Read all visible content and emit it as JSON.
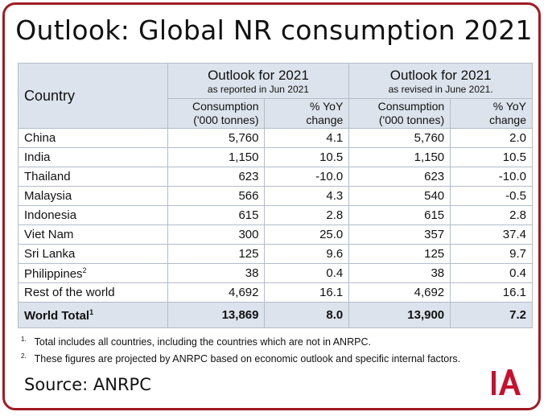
{
  "title": "Outlook: Global NR consumption 2021",
  "header": {
    "country_label": "Country",
    "group1_title": "Outlook for 2021",
    "group1_subtitle": "as reported in Jun 2021",
    "group2_title": "Outlook for 2021",
    "group2_subtitle": "as revised in June 2021.",
    "consumption_line1": "Consumption",
    "consumption_line2": "('000 tonnes)",
    "yoy_line1": "% YoY",
    "yoy_line2": "change"
  },
  "rows": [
    {
      "country": "China",
      "sup": "",
      "c1": "5,760",
      "y1": "4.1",
      "c2": "5,760",
      "y2": "2.0"
    },
    {
      "country": "India",
      "sup": "",
      "c1": "1,150",
      "y1": "10.5",
      "c2": "1,150",
      "y2": "10.5"
    },
    {
      "country": "Thailand",
      "sup": "",
      "c1": "623",
      "y1": "-10.0",
      "c2": "623",
      "y2": "-10.0"
    },
    {
      "country": "Malaysia",
      "sup": "",
      "c1": "566",
      "y1": "4.3",
      "c2": "540",
      "y2": "-0.5"
    },
    {
      "country": "Indonesia",
      "sup": "",
      "c1": "615",
      "y1": "2.8",
      "c2": "615",
      "y2": "2.8"
    },
    {
      "country": "Viet Nam",
      "sup": "",
      "c1": "300",
      "y1": "25.0",
      "c2": "357",
      "y2": "37.4"
    },
    {
      "country": "Sri Lanka",
      "sup": "",
      "c1": "125",
      "y1": "9.6",
      "c2": "125",
      "y2": "9.7"
    },
    {
      "country": "Philippines",
      "sup": "2",
      "c1": "38",
      "y1": "0.4",
      "c2": "38",
      "y2": "0.4"
    },
    {
      "country": "Rest of the world",
      "sup": "",
      "c1": "4,692",
      "y1": "16.1",
      "c2": "4,692",
      "y2": "16.1"
    }
  ],
  "total": {
    "country": "World Total",
    "sup": "1",
    "c1": "13,869",
    "y1": "8.0",
    "c2": "13,900",
    "y2": "7.2"
  },
  "footnotes": [
    {
      "mark": "1.",
      "text": "Total includes all countries, including the countries which are not in ANRPC."
    },
    {
      "mark": "2.",
      "text": "These figures are projected by ANRPC based on economic outlook and specific internal factors."
    }
  ],
  "source": "Source: ANRPC",
  "colors": {
    "frame": "#a01c22",
    "header_bg": "#dce3ec",
    "logo_red": "#c8102e"
  }
}
